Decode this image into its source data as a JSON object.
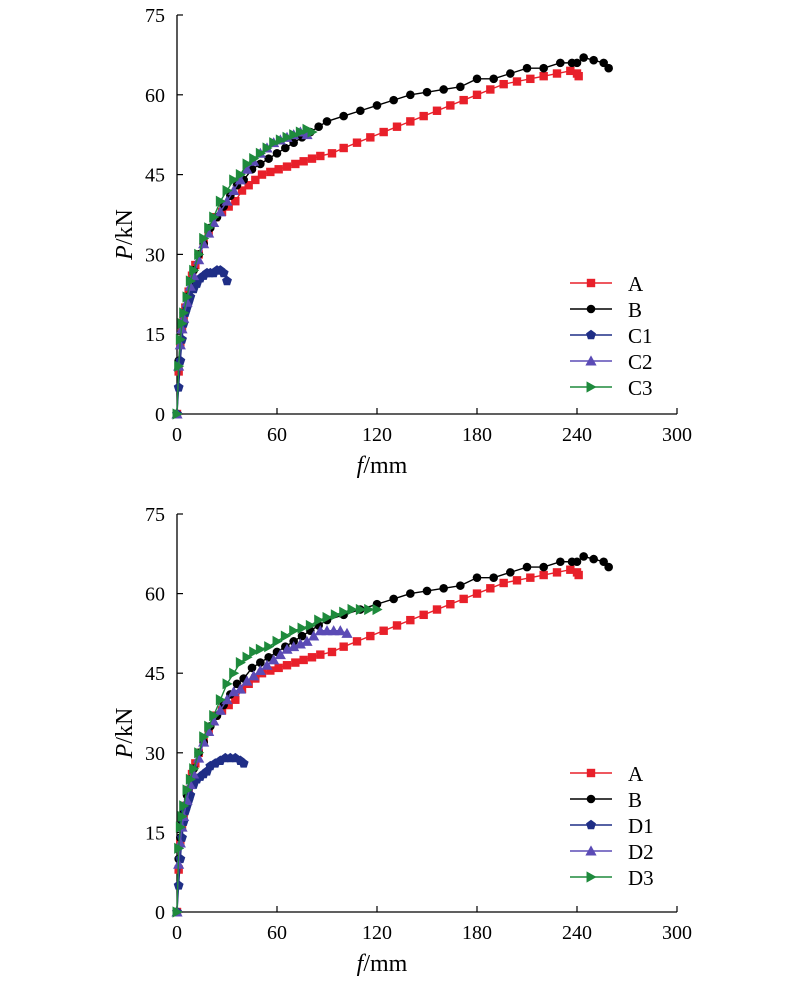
{
  "chart_data": [
    {
      "type": "line",
      "xlabel_italic": "f",
      "xlabel_rest": "/mm",
      "ylabel_italic": "P",
      "ylabel_rest": "/kN",
      "xlim": [
        0,
        300
      ],
      "ylim": [
        0,
        75
      ],
      "xticks": [
        0,
        60,
        120,
        180,
        240,
        300
      ],
      "yticks": [
        0,
        15,
        30,
        45,
        60,
        75
      ],
      "grid": false,
      "legend_position": "bottom-right",
      "series": [
        {
          "name": "A",
          "color": "#e8202a",
          "marker": "square",
          "x": [
            0,
            1,
            2,
            3,
            4,
            5,
            7,
            9,
            11,
            13,
            16,
            19,
            23,
            27,
            31,
            35,
            39,
            43,
            47,
            51,
            56,
            61,
            66,
            71,
            76,
            81,
            86,
            93,
            100,
            108,
            116,
            124,
            132,
            140,
            148,
            156,
            164,
            172,
            180,
            188,
            196,
            204,
            212,
            220,
            228,
            236,
            240,
            241
          ],
          "y": [
            0,
            8,
            13,
            16,
            18,
            20,
            23,
            26,
            28,
            30,
            32,
            34,
            37,
            38,
            39,
            40,
            42,
            43,
            44,
            45,
            45.5,
            46,
            46.5,
            47,
            47.5,
            48,
            48.5,
            49,
            50,
            51,
            52,
            53,
            54,
            55,
            56,
            57,
            58,
            59,
            60,
            61,
            62,
            62.5,
            63,
            63.5,
            64,
            64.5,
            64,
            63.5
          ]
        },
        {
          "name": "B",
          "color": "#000000",
          "marker": "circle",
          "x": [
            0,
            1,
            2,
            3,
            4,
            6,
            8,
            10,
            13,
            16,
            20,
            24,
            28,
            32,
            36,
            40,
            45,
            50,
            55,
            60,
            65,
            70,
            75,
            80,
            85,
            90,
            100,
            110,
            120,
            130,
            140,
            150,
            160,
            170,
            180,
            190,
            200,
            210,
            220,
            230,
            237,
            240,
            244,
            250,
            256,
            259
          ],
          "y": [
            0,
            10,
            14,
            17,
            19,
            22,
            25,
            27,
            30,
            32,
            35,
            37,
            39,
            41,
            43,
            44,
            46,
            47,
            48,
            49,
            50,
            51,
            52,
            53,
            54,
            55,
            56,
            57,
            58,
            59,
            60,
            60.5,
            61,
            61.5,
            63,
            63,
            64,
            65,
            65,
            66,
            66,
            66,
            67,
            66.5,
            66,
            65
          ]
        },
        {
          "name": "C1",
          "color": "#1f2e86",
          "marker": "pentagon",
          "x": [
            0,
            1,
            2,
            3,
            4,
            5,
            6,
            7,
            8,
            10,
            12,
            14,
            16,
            18,
            20,
            22,
            24,
            26,
            28,
            30
          ],
          "y": [
            0,
            5,
            10,
            14,
            17,
            19,
            20,
            21,
            22,
            23.5,
            24.5,
            25.5,
            26,
            26.5,
            26.5,
            26.5,
            27,
            27,
            26.5,
            25
          ]
        },
        {
          "name": "C2",
          "color": "#5b4bb5",
          "marker": "triangle-up",
          "x": [
            0,
            1,
            2,
            3,
            4,
            6,
            8,
            10,
            13,
            16,
            19,
            22,
            26,
            30,
            34,
            38,
            42,
            46,
            50,
            54,
            58,
            62,
            66,
            70,
            74,
            78
          ],
          "y": [
            0,
            9,
            13,
            16,
            18,
            21,
            24,
            26,
            29,
            32,
            34,
            36,
            38,
            40,
            42,
            44,
            46,
            47.5,
            49,
            50,
            51,
            51.5,
            52,
            52.5,
            53,
            52.5
          ]
        },
        {
          "name": "C3",
          "color": "#1e8a3c",
          "marker": "triangle-right",
          "x": [
            0,
            1,
            2,
            3,
            4,
            6,
            8,
            10,
            13,
            16,
            19,
            22,
            26,
            30,
            34,
            38,
            42,
            46,
            50,
            54,
            58,
            62,
            66,
            70,
            74,
            78,
            81
          ],
          "y": [
            0,
            9,
            14,
            17,
            19,
            22,
            25,
            27,
            30,
            33,
            35,
            37,
            40,
            42,
            44,
            45,
            47,
            48,
            49,
            50,
            51,
            51.5,
            52,
            52.5,
            53,
            53.5,
            53
          ]
        }
      ]
    },
    {
      "type": "line",
      "xlabel_italic": "f",
      "xlabel_rest": "/mm",
      "ylabel_italic": "P",
      "ylabel_rest": "/kN",
      "xlim": [
        0,
        300
      ],
      "ylim": [
        0,
        75
      ],
      "xticks": [
        0,
        60,
        120,
        180,
        240,
        300
      ],
      "yticks": [
        0,
        15,
        30,
        45,
        60,
        75
      ],
      "grid": false,
      "legend_position": "bottom-right",
      "series": [
        {
          "name": "A",
          "color": "#e8202a",
          "marker": "square",
          "x": [
            0,
            1,
            2,
            3,
            4,
            5,
            7,
            9,
            11,
            13,
            16,
            19,
            23,
            27,
            31,
            35,
            39,
            43,
            47,
            51,
            56,
            61,
            66,
            71,
            76,
            81,
            86,
            93,
            100,
            108,
            116,
            124,
            132,
            140,
            148,
            156,
            164,
            172,
            180,
            188,
            196,
            204,
            212,
            220,
            228,
            236,
            240,
            241
          ],
          "y": [
            0,
            8,
            13,
            16,
            18,
            20,
            23,
            26,
            28,
            30,
            32,
            34,
            37,
            38,
            39,
            40,
            42,
            43,
            44,
            45,
            45.5,
            46,
            46.5,
            47,
            47.5,
            48,
            48.5,
            49,
            50,
            51,
            52,
            53,
            54,
            55,
            56,
            57,
            58,
            59,
            60,
            61,
            62,
            62.5,
            63,
            63.5,
            64,
            64.5,
            64,
            63.5
          ]
        },
        {
          "name": "B",
          "color": "#000000",
          "marker": "circle",
          "x": [
            0,
            1,
            2,
            3,
            4,
            6,
            8,
            10,
            13,
            16,
            20,
            24,
            28,
            32,
            36,
            40,
            45,
            50,
            55,
            60,
            65,
            70,
            75,
            80,
            85,
            90,
            100,
            110,
            120,
            130,
            140,
            150,
            160,
            170,
            180,
            190,
            200,
            210,
            220,
            230,
            237,
            240,
            244,
            250,
            256,
            259
          ],
          "y": [
            0,
            10,
            14,
            17,
            19,
            22,
            25,
            27,
            30,
            32,
            35,
            37,
            39,
            41,
            43,
            44,
            46,
            47,
            48,
            49,
            50,
            51,
            52,
            53,
            54,
            55,
            56,
            57,
            58,
            59,
            60,
            60.5,
            61,
            61.5,
            63,
            63,
            64,
            65,
            65,
            66,
            66,
            66,
            67,
            66.5,
            66,
            65
          ]
        },
        {
          "name": "D1",
          "color": "#1f2e86",
          "marker": "pentagon",
          "x": [
            0,
            1,
            2,
            3,
            4,
            5,
            6,
            7,
            8,
            10,
            12,
            14,
            16,
            18,
            20,
            23,
            26,
            29,
            32,
            35,
            38,
            40
          ],
          "y": [
            0,
            5,
            10,
            14,
            17,
            19,
            20,
            21,
            22,
            24,
            25,
            25.5,
            26,
            26.5,
            27.5,
            28,
            28.5,
            29,
            29,
            29,
            28.5,
            28
          ]
        },
        {
          "name": "D2",
          "color": "#5b4bb5",
          "marker": "triangle-up",
          "x": [
            0,
            1,
            2,
            3,
            4,
            6,
            8,
            10,
            13,
            16,
            19,
            22,
            26,
            30,
            34,
            38,
            42,
            46,
            50,
            54,
            58,
            62,
            66,
            70,
            74,
            78,
            82,
            86,
            90,
            94,
            98,
            102
          ],
          "y": [
            0,
            9,
            13,
            16,
            18,
            21,
            24,
            26,
            29,
            32,
            34,
            36,
            38,
            40,
            41.5,
            42,
            43.5,
            44.5,
            45.5,
            46.5,
            47.5,
            48.5,
            49.5,
            50,
            50.5,
            51,
            52,
            53,
            53,
            53,
            53,
            52.5
          ]
        },
        {
          "name": "D3",
          "color": "#1e8a3c",
          "marker": "triangle-right",
          "x": [
            0,
            1,
            2,
            3,
            4,
            6,
            8,
            10,
            13,
            16,
            19,
            22,
            26,
            30,
            34,
            38,
            42,
            46,
            50,
            55,
            60,
            65,
            70,
            75,
            80,
            85,
            90,
            95,
            100,
            105,
            110,
            115,
            120
          ],
          "y": [
            0,
            12,
            16,
            18,
            20,
            23,
            25,
            27,
            30,
            33,
            35,
            37,
            40,
            43,
            45,
            47,
            48,
            49,
            49.5,
            50,
            51,
            52,
            53,
            53.5,
            54,
            55,
            55.5,
            56,
            56.5,
            57,
            57,
            57,
            57
          ]
        }
      ]
    }
  ]
}
